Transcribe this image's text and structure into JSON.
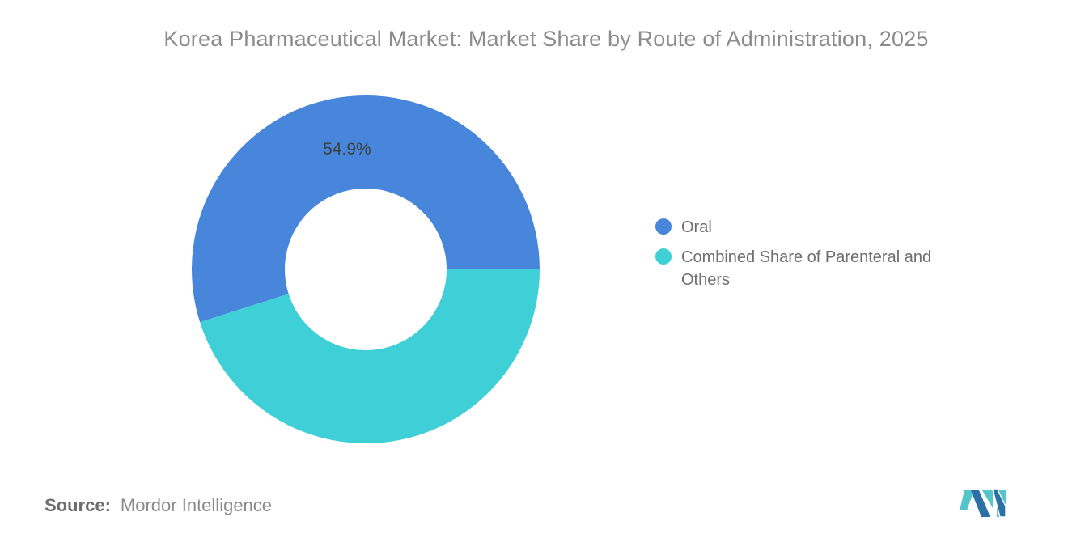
{
  "title": "Korea Pharmaceutical Market: Market Share by Route of Administration, 2025",
  "chart_data": {
    "type": "pie",
    "subtype": "donut",
    "title": "Korea Pharmaceutical Market: Market Share by Route of Administration, 2025",
    "legend_position": "right",
    "slices": [
      {
        "label": "Oral",
        "value": 54.9,
        "color": "#4786da",
        "data_label": "54.9%"
      },
      {
        "label": "Combined Share of Parenteral and Others",
        "value": 45.1,
        "color": "#3fcfd6",
        "data_label": ""
      }
    ],
    "data_label_color": "#3f3f3f",
    "hole_radius_ratio": 0.465
  },
  "footer": {
    "source_label": "Source:",
    "source_value": "Mordor Intelligence"
  },
  "logo": {
    "name": "mordor-intelligence-logo",
    "teal": "#54c6cb",
    "blue": "#2e6fa8"
  }
}
